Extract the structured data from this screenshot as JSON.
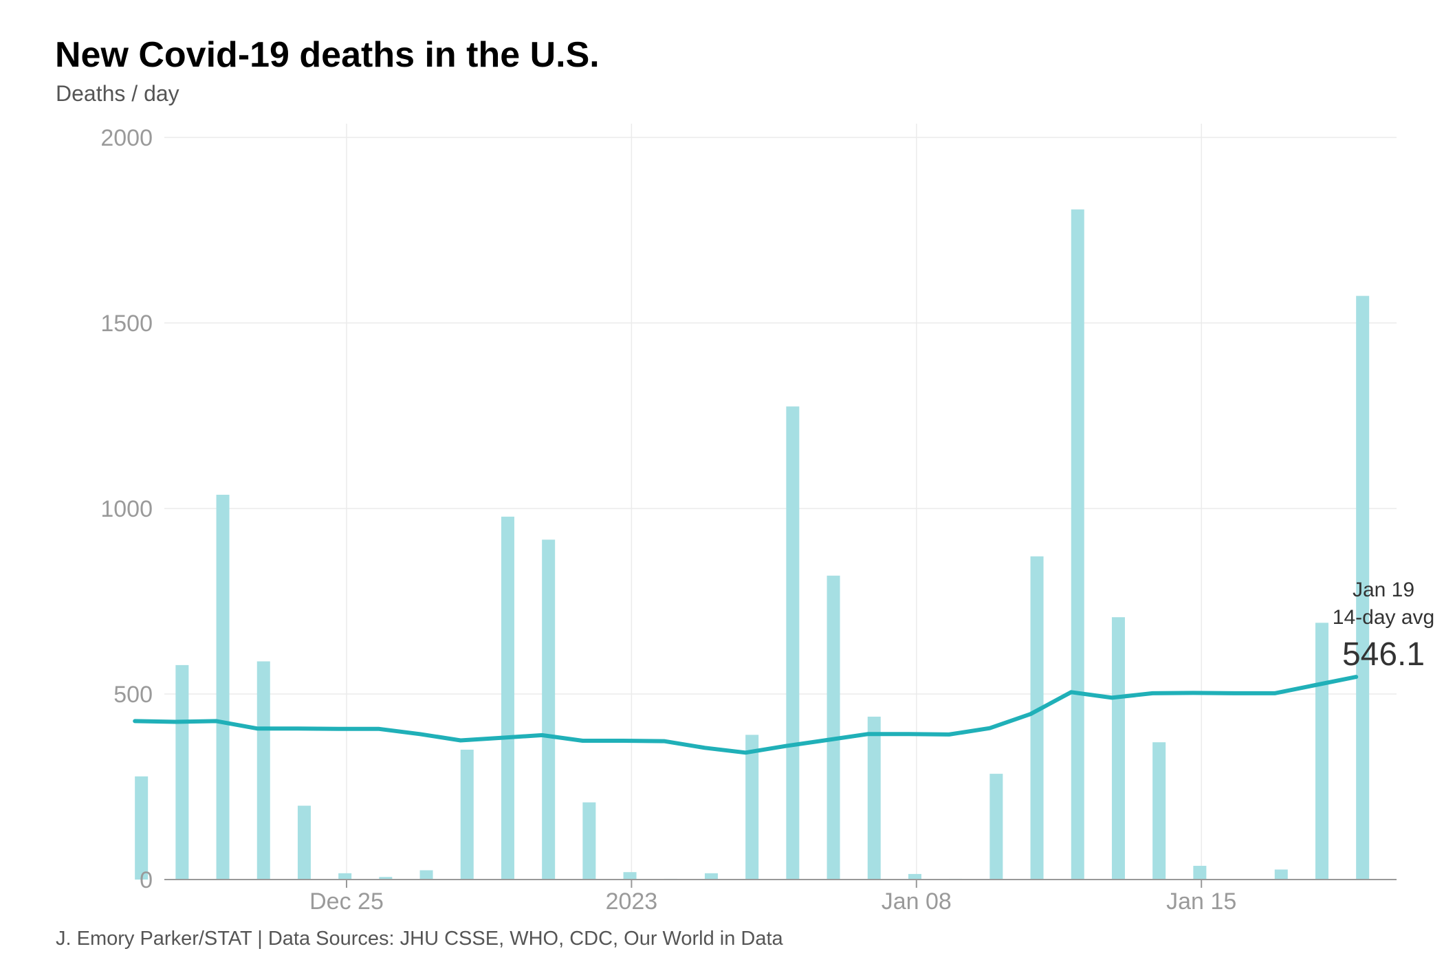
{
  "title": "New Covid-19 deaths in the U.S.",
  "subtitle": "Deaths / day",
  "footer": "J. Emory Parker/STAT | Data Sources: JHU CSSE, WHO, CDC, Our World in Data",
  "colors": {
    "bars": "#a6dfe3",
    "line": "#20b0b8",
    "grid": "#ebebeb",
    "tick_text": "#9a9a9a",
    "annotation": "#333333"
  },
  "chart_data": {
    "type": "bar",
    "title": "New Covid-19 deaths in the U.S.",
    "ylabel": "Deaths / day",
    "xlabel": "",
    "ylim": [
      0,
      2000
    ],
    "yticks": [
      0,
      500,
      1000,
      1500,
      2000
    ],
    "ytick_labels": [
      "0",
      "500",
      "1000",
      "1500",
      "2000"
    ],
    "xticks": [
      {
        "date": "2022-12-25",
        "label": "Dec 25"
      },
      {
        "date": "2023-01-01",
        "label": "2023"
      },
      {
        "date": "2023-01-08",
        "label": "Jan 08"
      },
      {
        "date": "2023-01-15",
        "label": "Jan 15"
      }
    ],
    "grid": true,
    "dates": [
      "2022-12-20",
      "2022-12-21",
      "2022-12-22",
      "2022-12-23",
      "2022-12-24",
      "2022-12-25",
      "2022-12-26",
      "2022-12-27",
      "2022-12-28",
      "2022-12-29",
      "2022-12-30",
      "2022-12-31",
      "2023-01-01",
      "2023-01-02",
      "2023-01-03",
      "2023-01-04",
      "2023-01-05",
      "2023-01-06",
      "2023-01-07",
      "2023-01-08",
      "2023-01-09",
      "2023-01-10",
      "2023-01-11",
      "2023-01-12",
      "2023-01-13",
      "2023-01-14",
      "2023-01-15",
      "2023-01-16",
      "2023-01-17",
      "2023-01-18",
      "2023-01-19"
    ],
    "series": [
      {
        "type": "bar",
        "values": [
          278,
          578,
          1037,
          588,
          199,
          17,
          7,
          25,
          350,
          978,
          916,
          208,
          20,
          2,
          17,
          390,
          1275,
          819,
          439,
          15,
          2,
          285,
          871,
          1806,
          707,
          370,
          37,
          0,
          27,
          692,
          1573
        ]
      },
      {
        "type": "line",
        "values": [
          427,
          425,
          427,
          407,
          407,
          406,
          406,
          392,
          375,
          382,
          389,
          374,
          374,
          373,
          355,
          342,
          360,
          376,
          392,
          392,
          391,
          408,
          446,
          505,
          490,
          502,
          503,
          502,
          502,
          524,
          546.1
        ]
      }
    ],
    "annotation": {
      "date_label": "Jan 19",
      "label": "14-day avg",
      "value": "546.1"
    }
  }
}
